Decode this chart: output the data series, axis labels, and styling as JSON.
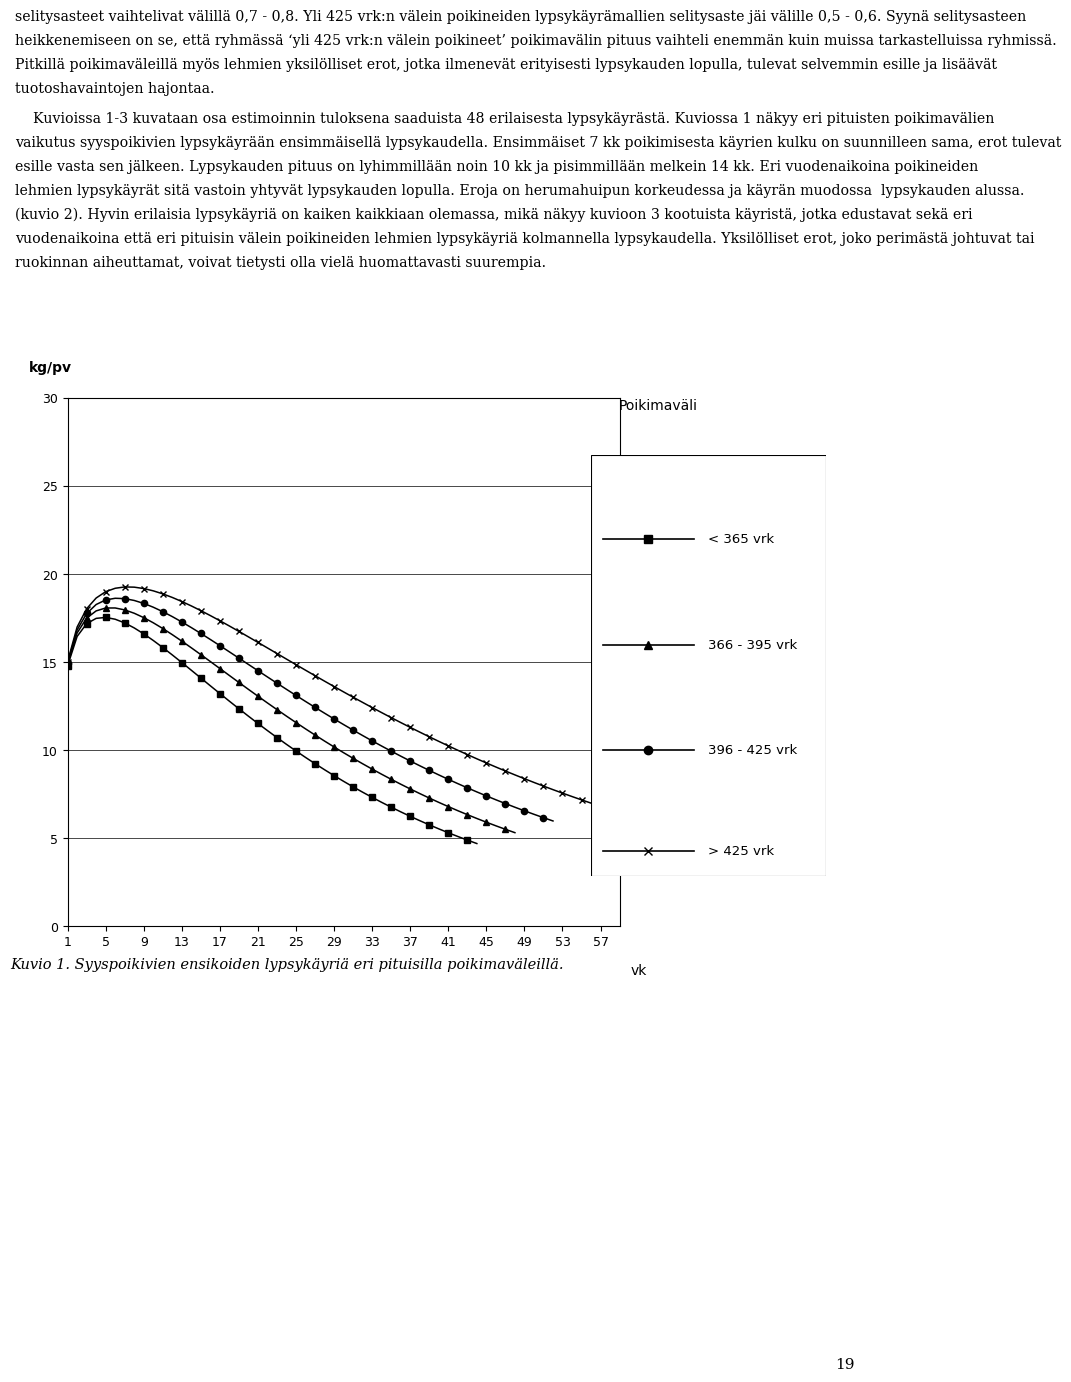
{
  "figure_bg": "#ffffff",
  "ylabel": "kg/pv",
  "xlabel": "vk",
  "xlim": [
    1,
    59
  ],
  "ylim": [
    0,
    30
  ],
  "yticks": [
    0,
    5,
    10,
    15,
    20,
    25,
    30
  ],
  "xtick_positions": [
    1,
    5,
    9,
    13,
    17,
    21,
    25,
    29,
    33,
    37,
    41,
    45,
    49,
    53,
    57
  ],
  "legend_title": "Poikimaväli",
  "series": [
    {
      "label": "< 365 vrk",
      "marker": "s",
      "wood_a": 15.5,
      "wood_b": 0.22,
      "wood_c": 0.046,
      "x_end": 44
    },
    {
      "label": "366 - 395 vrk",
      "marker": "^",
      "wood_a": 15.5,
      "wood_b": 0.22,
      "wood_c": 0.04,
      "x_end": 48
    },
    {
      "label": "396 - 425 vrk",
      "marker": "o",
      "wood_a": 15.5,
      "wood_b": 0.22,
      "wood_c": 0.035,
      "x_end": 52
    },
    {
      "label": "> 425 vrk",
      "marker": "x",
      "wood_a": 15.5,
      "wood_b": 0.22,
      "wood_c": 0.03,
      "x_end": 57
    }
  ],
  "caption": "Kuvio 1. Syyspoikivien ensikoiden lypsykäyriä eri pituisilla poikimaväleillä.",
  "page_number": "19",
  "para1_lines": [
    "selitysasteet vaihtelivat välillä 0,7 - 0,8. Yli 425 vrk:n välein poikineiden lypsykäyrämallien selitysaste jäi välille 0,5 - 0,6. Syynä selitysasteen",
    "heikkenemiseen on se, että ryhmässä ‘yli 425 vrk:n välein poikineet’ poikimavälin pituus vaihteli enemmän kuin muissa tarkastelluissa ryhmissä.",
    "Pitkillä poikimaväleillä myös lehmien yksilölliset erot, jotka ilmenevät erityisesti lypsykauden lopulla, tulevat selvemmin esille ja lisäävät",
    "tuotoshavaintojen hajontaa."
  ],
  "para2_lines": [
    "    Kuvioissa 1-3 kuvataan osa estimoinnin tuloksena saaduista 48 erilaisesta lypsykäyrästä. Kuviossa 1 näkyy eri pituisten poikimavälien",
    "vaikutus syyspoikivien lypsykäyrään ensimmäisellä lypsykaudella. Ensimmäiset 7 kk poikimisesta käyrien kulku on suunnilleen sama, erot tulevat",
    "esille vasta sen jälkeen. Lypsykauden pituus on lyhimmillään noin 10 kk ja pisimmillään melkein 14 kk. Eri vuodenaikoina poikineiden",
    "lehmien lypsykäyrät sitä vastoin yhtyvät lypsykauden lopulla. Eroja on herumahuipun korkeudessa ja käyrän muodossa  lypsykauden alussa.",
    "(kuvio 2). Hyvin erilaisia lypsykäyriä on kaiken kaikkiaan olemassa, mikä näkyy kuvioon 3 kootuista käyristä, jotka edustavat sekä eri",
    "vuodenaikoina että eri pituisin välein poikineiden lehmien lypsykäyriä kolmannella lypsykaudella. Yksilölliset erot, joko perimästä johtuvat tai",
    "ruokinnan aiheuttamat, voivat tietysti olla vielä huomattavasti suurempia."
  ]
}
